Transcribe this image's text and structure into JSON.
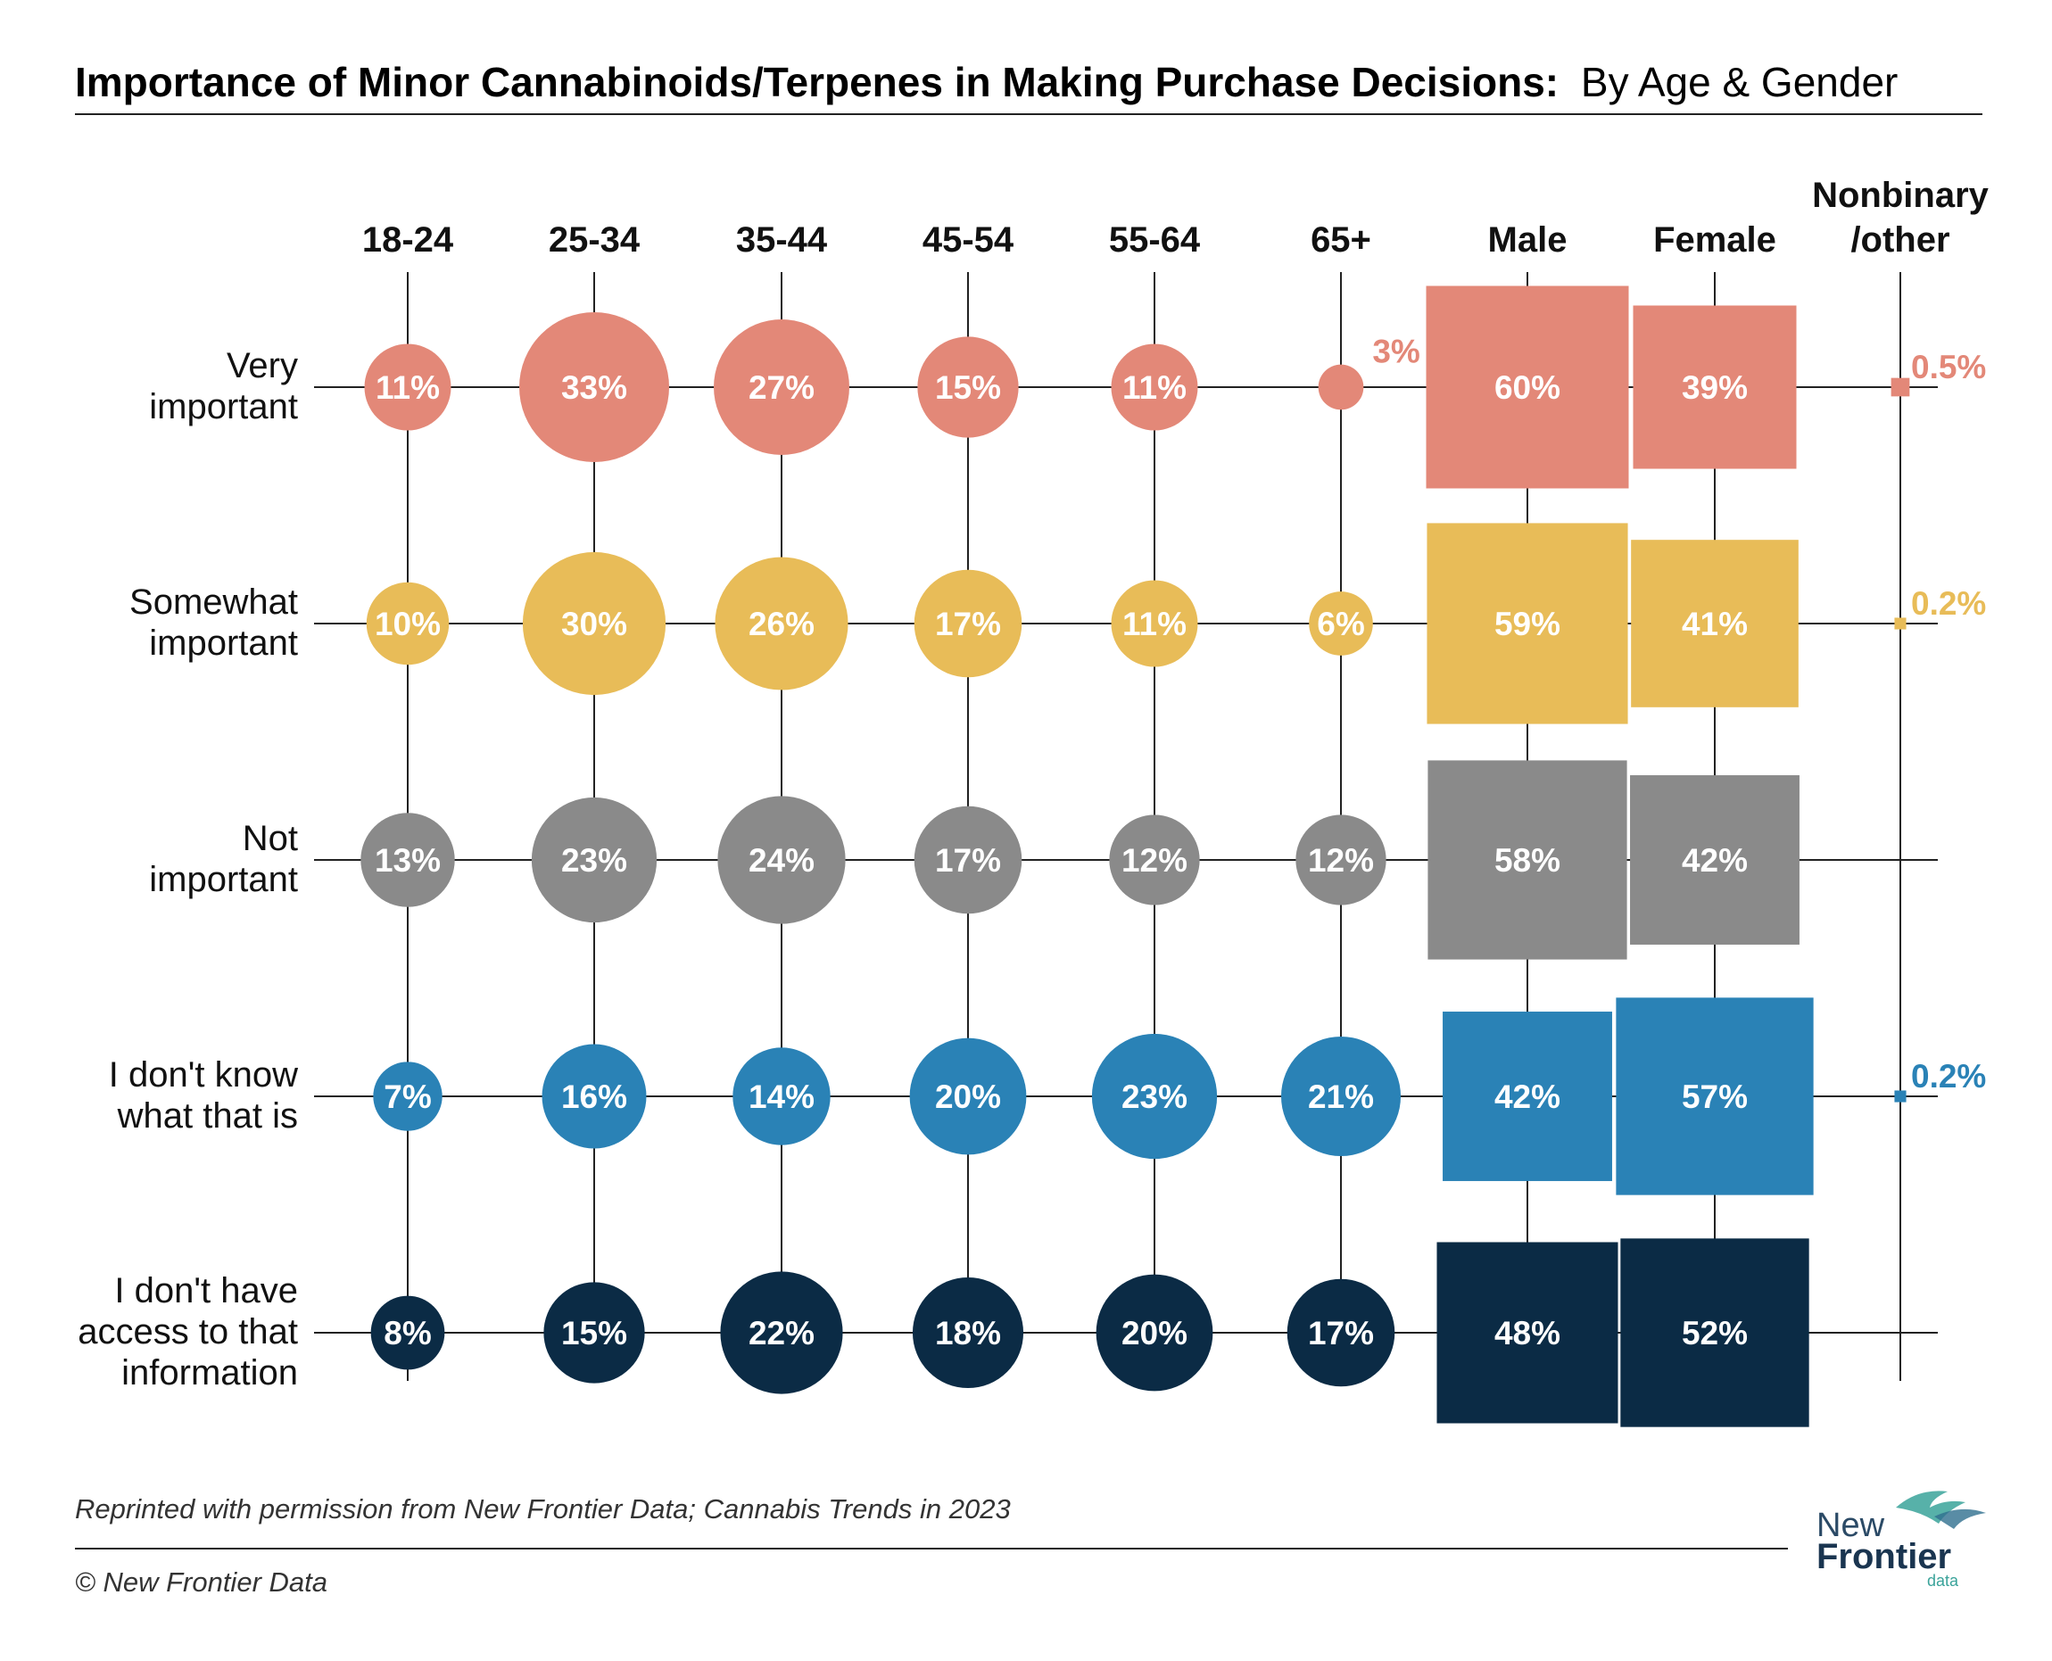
{
  "title": "Importance of Minor Cannabinoids/Terpenes in Making Purchase Decisions:",
  "subtitle": "By Age & Gender",
  "footer": {
    "source": "Reprinted with permission from New Frontier Data; Cannabis Trends in 2023",
    "copyright": "© New Frontier Data"
  },
  "logo": {
    "line1": "New",
    "line2": "Frontier",
    "line3": "data"
  },
  "colors": {
    "very_important": "#e38878",
    "somewhat_important": "#e8bc58",
    "not_important": "#8a8a8a",
    "dont_know": "#2a82b6",
    "no_access": "#0b2b45",
    "grid": "#222222"
  },
  "chart_data": {
    "type": "bubble-grid",
    "age_groups": [
      "18-24",
      "25-34",
      "35-44",
      "45-54",
      "55-64",
      "65+"
    ],
    "genders": [
      "Male",
      "Female",
      "Nonbinary\n/other"
    ],
    "rows": [
      {
        "label": "Very\nimportant",
        "color_key": "very_important",
        "age_values": [
          11,
          33,
          27,
          15,
          11,
          3
        ],
        "gender_values": [
          60,
          39,
          0.5
        ]
      },
      {
        "label": "Somewhat\nimportant",
        "color_key": "somewhat_important",
        "age_values": [
          10,
          30,
          26,
          17,
          11,
          6
        ],
        "gender_values": [
          59,
          41,
          0.2
        ]
      },
      {
        "label": "Not\nimportant",
        "color_key": "not_important",
        "age_values": [
          13,
          23,
          24,
          17,
          12,
          12
        ],
        "gender_values": [
          58,
          42,
          null
        ]
      },
      {
        "label": "I don't know\nwhat that is",
        "color_key": "dont_know",
        "age_values": [
          7,
          16,
          14,
          20,
          23,
          21
        ],
        "gender_values": [
          42,
          57,
          0.2
        ]
      },
      {
        "label": "I don't have\naccess to that\ninformation",
        "color_key": "no_access",
        "age_values": [
          8,
          15,
          22,
          18,
          20,
          17
        ],
        "gender_values": [
          48,
          52,
          null
        ]
      }
    ],
    "unit": "%"
  }
}
